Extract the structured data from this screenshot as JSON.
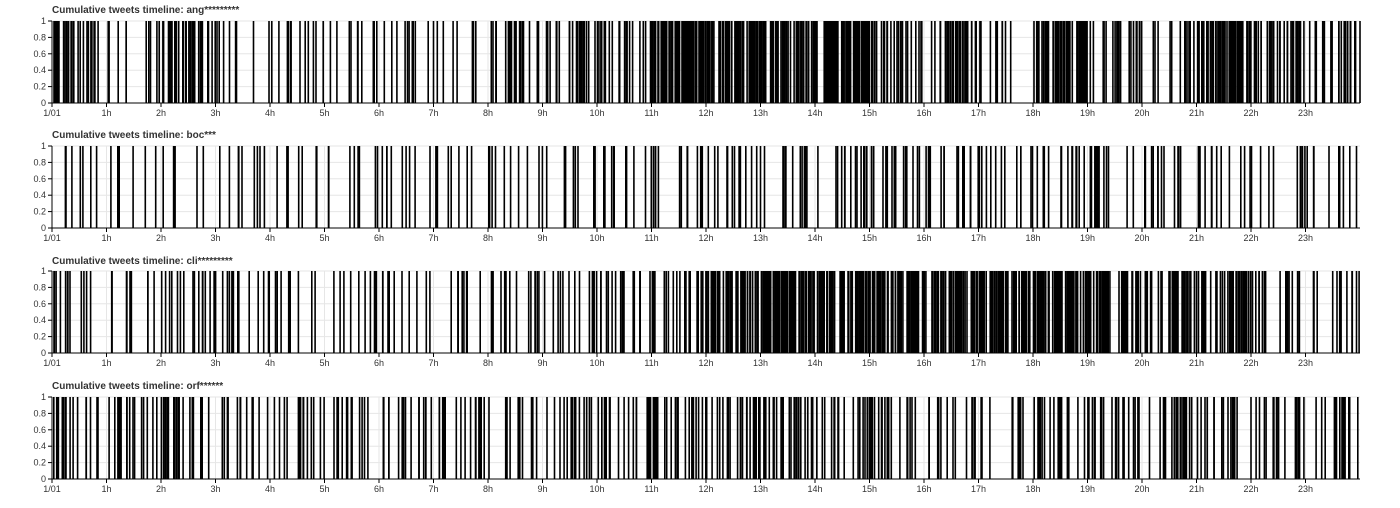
{
  "chart_data": [
    {
      "type": "bar",
      "title": "Cumulative tweets timeline: ang*********",
      "xlabel": "",
      "ylabel": "",
      "ylim": [
        0,
        1
      ],
      "y_ticks": [
        "0",
        "0.2",
        "0.4",
        "0.6",
        "0.8",
        "1"
      ],
      "x_ticks": [
        "1/01",
        "1h",
        "2h",
        "3h",
        "4h",
        "5h",
        "6h",
        "7h",
        "8h",
        "9h",
        "10h",
        "11h",
        "12h",
        "13h",
        "14h",
        "15h",
        "16h",
        "17h",
        "18h",
        "19h",
        "20h",
        "21h",
        "22h",
        "23h"
      ],
      "grid": true,
      "events_per_hour": [
        28,
        10,
        36,
        8,
        12,
        10,
        10,
        8,
        22,
        22,
        24,
        70,
        52,
        50,
        72,
        24,
        30,
        10,
        58,
        22,
        12,
        58,
        32,
        20
      ],
      "seed": 11
    },
    {
      "type": "bar",
      "title": "Cumulative tweets timeline: boc***",
      "xlabel": "",
      "ylabel": "",
      "ylim": [
        0,
        1
      ],
      "y_ticks": [
        "0",
        "0.2",
        "0.4",
        "0.6",
        "0.8",
        "1"
      ],
      "x_ticks": [
        "1/01",
        "1h",
        "2h",
        "3h",
        "4h",
        "5h",
        "6h",
        "7h",
        "8h",
        "9h",
        "10h",
        "11h",
        "12h",
        "13h",
        "14h",
        "15h",
        "16h",
        "17h",
        "18h",
        "19h",
        "20h",
        "21h",
        "22h",
        "23h"
      ],
      "grid": true,
      "events_per_hour": [
        7,
        6,
        7,
        9,
        8,
        8,
        9,
        8,
        10,
        9,
        10,
        12,
        14,
        12,
        14,
        16,
        14,
        12,
        14,
        14,
        12,
        12,
        10,
        9
      ],
      "seed": 23
    },
    {
      "type": "bar",
      "title": "Cumulative tweets timeline: cli*********",
      "xlabel": "",
      "ylabel": "",
      "ylim": [
        0,
        1
      ],
      "y_ticks": [
        "0",
        "0.2",
        "0.4",
        "0.6",
        "0.8",
        "1"
      ],
      "x_ticks": [
        "1/01",
        "1h",
        "2h",
        "3h",
        "4h",
        "5h",
        "6h",
        "7h",
        "8h",
        "9h",
        "10h",
        "11h",
        "12h",
        "13h",
        "14h",
        "15h",
        "16h",
        "17h",
        "18h",
        "19h",
        "20h",
        "21h",
        "22h",
        "23h"
      ],
      "grid": true,
      "events_per_hour": [
        12,
        10,
        16,
        14,
        12,
        10,
        10,
        8,
        14,
        14,
        16,
        24,
        42,
        72,
        50,
        62,
        50,
        56,
        58,
        36,
        34,
        42,
        16,
        14
      ],
      "seed": 37
    },
    {
      "type": "bar",
      "title": "Cumulative tweets timeline: orf******",
      "xlabel": "",
      "ylabel": "",
      "ylim": [
        0,
        1
      ],
      "y_ticks": [
        "0",
        "0.2",
        "0.4",
        "0.6",
        "0.8",
        "1"
      ],
      "x_ticks": [
        "1/01",
        "1h",
        "2h",
        "3h",
        "4h",
        "5h",
        "6h",
        "7h",
        "8h",
        "9h",
        "10h",
        "11h",
        "12h",
        "13h",
        "14h",
        "15h",
        "16h",
        "17h",
        "18h",
        "19h",
        "20h",
        "21h",
        "22h",
        "23h"
      ],
      "grid": true,
      "events_per_hour": [
        18,
        16,
        22,
        14,
        14,
        14,
        18,
        16,
        10,
        16,
        20,
        20,
        22,
        26,
        18,
        16,
        14,
        12,
        20,
        22,
        18,
        16,
        16,
        14
      ],
      "seed": 53
    }
  ]
}
